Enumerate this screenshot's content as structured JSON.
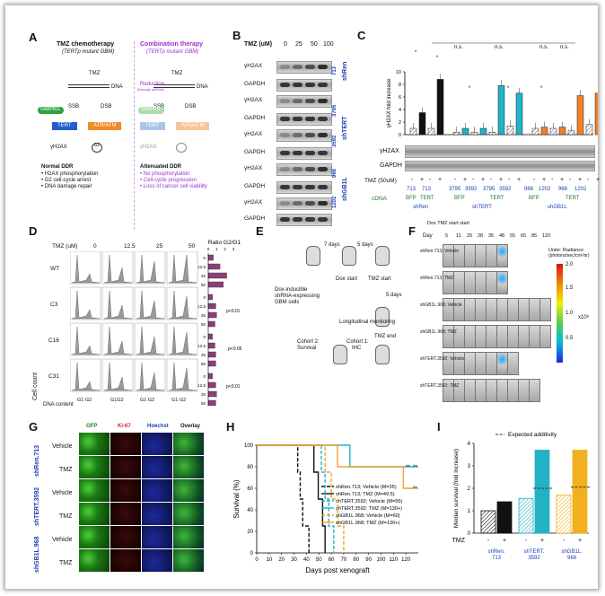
{
  "panels": {
    "A": {
      "label": "A",
      "left_title": "TMZ chemotherapy",
      "left_sub": "(TERTp mutant GBM)",
      "right_title": "Combination therapy",
      "right_sub": "(TERTp mutant GBM)",
      "tmz": "TMZ",
      "dna": "DNA",
      "ssb": "SSB",
      "dsb": "DSB",
      "gabpb1l": "GABPB1L",
      "tert": "TERT",
      "atr_atm": "ATR/ATM",
      "gh2ax": "γH2AX",
      "g2": "G2",
      "reduction": "Reduction",
      "reduction_sub": "(through shRNA)",
      "left_outcome_title": "Normal DDR",
      "left_outcomes": [
        "• H2AX phosphorylation",
        "• G2 cell-cycle arrest",
        "• DNA damage repair"
      ],
      "right_outcome_title": "Attenuated DDR",
      "right_outcomes": [
        "• No phosphorylation",
        "• Cell-cycle progression",
        "• Loss of cancer cell viability"
      ]
    },
    "B": {
      "label": "B",
      "header": "TMZ (uM)",
      "doses": [
        "0",
        "25",
        "50",
        "100"
      ],
      "rows": [
        "γH2AX",
        "GAPDH",
        "γH2AX",
        "GAPDH",
        "γH2AX",
        "GAPDH",
        "γH2AX",
        "GAPDH",
        "γH2AX",
        "GAPDH"
      ],
      "clones": [
        "713",
        "3795",
        "3592",
        "968",
        "1202"
      ],
      "groups": [
        "shRen",
        "shTERT",
        "shGB1L"
      ]
    },
    "C": {
      "label": "C",
      "y_label": "γH2AX fold increase",
      "y_ticks": [
        "0",
        "2",
        "4",
        "6",
        "8",
        "10"
      ],
      "sig": [
        "*",
        "*",
        "*",
        "*",
        "*",
        "n.s.",
        "n.s.",
        "n.s.",
        "n.s."
      ],
      "blot_rows": [
        "γH2AX",
        "GAPDH"
      ],
      "tmz_label": "TMZ (50uM)",
      "tmz_signs": [
        "-",
        "+",
        "-",
        "+",
        "-",
        "+",
        "-",
        "+",
        "-",
        "+",
        "-",
        "+",
        "-",
        "+",
        "-",
        "+",
        "-",
        "+",
        "-",
        "+"
      ],
      "clone_numbers": [
        "713",
        "713",
        "3795",
        "3592",
        "3795",
        "3592",
        "968",
        "1202",
        "968",
        "1202"
      ],
      "cdna_label": "cDNA",
      "cdna": [
        "BFP",
        "TERT",
        "BFP",
        "TERT",
        "BFP",
        "TERT"
      ],
      "groups": [
        "shRen",
        "shTERT",
        "shGB1L"
      ],
      "chart_data": {
        "type": "bar",
        "ylabel": "γH2AX fold increase",
        "ylim": [
          0,
          10
        ],
        "categories": [
          "shRen BFP -",
          "shRen BFP +",
          "shRen TERT -",
          "shRen TERT +",
          "shTERT 3795 BFP -",
          "shTERT 3795 BFP +",
          "shTERT 3592 BFP -",
          "shTERT 3592 BFP +",
          "shTERT 3795 TERT -",
          "shTERT 3795 TERT +",
          "shTERT 3592 TERT -",
          "shTERT 3592 TERT +",
          "shGB1L 968 BFP -",
          "shGB1L 968 BFP +",
          "shGB1L 1202 BFP -",
          "shGB1L 1202 BFP +",
          "shGB1L 968 TERT -",
          "shGB1L 968 TERT +",
          "shGB1L 1202 TERT -",
          "shGB1L 1202 TERT +"
        ],
        "values": [
          1.0,
          3.5,
          1.0,
          8.8,
          0.4,
          1.0,
          0.4,
          1.0,
          0.4,
          7.8,
          1.4,
          6.6,
          1.0,
          1.2,
          1.0,
          1.2,
          0.6,
          6.2,
          1.6,
          6.6
        ],
        "colors": [
          "#ffffff",
          "#111111",
          "#ffffff",
          "#111111",
          "#ffffff",
          "#23b2c6",
          "#ffffff",
          "#23b2c6",
          "#ffffff",
          "#23b2c6",
          "#ffffff",
          "#23b2c6",
          "#ffffff",
          "#f07f2a",
          "#ffffff",
          "#f07f2a",
          "#ffffff",
          "#f07f2a",
          "#ffffff",
          "#f07f2a"
        ]
      }
    },
    "D": {
      "label": "D",
      "tmz_header": "TMZ (uM)",
      "doses": [
        "0",
        "12.5",
        "25",
        "50"
      ],
      "rows": [
        "WT",
        "C3",
        "C16",
        "C31"
      ],
      "y_label": "Cell count",
      "x_label": "DNA content",
      "g_labels": [
        "G1 G2",
        "G1G2",
        "G1 G2",
        "G1 G2"
      ],
      "ratio_title": "Ratio G2/G1",
      "ratio_ticks": [
        "0",
        "1",
        "2",
        "3"
      ],
      "ratio_dose_labels": [
        "0",
        "12.5",
        "25",
        "50"
      ],
      "pvalues": [
        "p<0.01",
        "p<0.05",
        "p<0.01"
      ],
      "chart_data": {
        "type": "bar",
        "title": "Ratio G2/G1",
        "orientation": "horizontal",
        "xlim": [
          0,
          3
        ],
        "categories": [
          "WT 0",
          "WT 12.5",
          "WT 25",
          "WT 50",
          "C3 0",
          "C3 12.5",
          "C3 25",
          "C3 50",
          "C16 0",
          "C16 12.5",
          "C16 25",
          "C16 50",
          "C31 0",
          "C31 12.5",
          "C31 25",
          "C31 50"
        ],
        "values": [
          0.6,
          1.4,
          2.2,
          1.8,
          0.5,
          0.9,
          1.0,
          0.8,
          0.5,
          0.8,
          0.9,
          0.9,
          0.5,
          0.9,
          1.0,
          0.9
        ]
      }
    },
    "E": {
      "label": "E",
      "steps": [
        "7 days",
        "5 days",
        "Dox start",
        "TMZ start",
        "5 days",
        "Longitudinal monitoring",
        "TMZ end"
      ],
      "cells_label": [
        "Dox-inducible",
        "shRNA-expressing",
        "GBM cells"
      ],
      "cohort1": [
        "Cohort 1:",
        "IHC"
      ],
      "cohort2": [
        "Cohort 2:",
        "Survival"
      ]
    },
    "F": {
      "label": "F",
      "day_label": "Day",
      "days": [
        "5",
        "11",
        "20",
        "28",
        "35",
        "48",
        "55",
        "65",
        "85",
        "120"
      ],
      "dox_label": "Dox TMZ start start",
      "rows": [
        "shRen.713; Vehicle",
        "shRen.713; TMZ",
        "shGB1L.968; Vehicle",
        "shGB1L.968; TMZ",
        "shTERT.3592; Vehicle",
        "shTERT.3592; TMZ"
      ],
      "scale_title": [
        "Unite: Radiance",
        "(photons/sec/cm²/sr)"
      ],
      "scale_max": "2.0",
      "scale_vals": [
        "1.5",
        "1.0",
        "0.5"
      ],
      "scale_mult": "x10⁸"
    },
    "G": {
      "label": "G",
      "columns": [
        "GFP",
        "Ki-67",
        "Hoechst",
        "Overlay"
      ],
      "groups": [
        "shRen.713",
        "shTERT.3592",
        "shGB1L.968"
      ],
      "rows": [
        "Vehicle",
        "TMZ",
        "Vehicle",
        "TMZ",
        "Vehicle",
        "TMZ"
      ]
    },
    "H": {
      "label": "H",
      "y_label": "Survival (%)",
      "x_label": "Days post xenograft",
      "stars": [
        "**",
        "**",
        "**"
      ],
      "chart_data": {
        "type": "line",
        "xlabel": "Days post xenograft",
        "ylabel": "Survival (%)",
        "xlim": [
          0,
          130
        ],
        "ylim": [
          0,
          100
        ],
        "x_ticks": [
          0,
          10,
          20,
          30,
          40,
          50,
          60,
          70,
          80,
          90,
          100,
          110,
          120
        ],
        "y_ticks": [
          0,
          20,
          40,
          60,
          80,
          100
        ],
        "series": [
          {
            "name": "shRen.713; Vehicle (M=35)",
            "color": "#111111",
            "dash": "4,2",
            "x": [
              0,
              30,
              33,
              35,
              37,
              42
            ],
            "y": [
              100,
              100,
              75,
              50,
              25,
              0
            ]
          },
          {
            "name": "shRen.713; TMZ (M=49.5)",
            "color": "#111111",
            "dash": "",
            "x": [
              0,
              41,
              46,
              49.5,
              53,
              55
            ],
            "y": [
              100,
              100,
              75,
              50,
              25,
              0
            ]
          },
          {
            "name": "shTERT.3592; Vehicle (M=55)",
            "color": "#23b2c6",
            "dash": "4,2",
            "x": [
              0,
              47,
              52,
              55,
              58,
              62
            ],
            "y": [
              100,
              100,
              75,
              50,
              25,
              0
            ]
          },
          {
            "name": "shTERT.3592; TMZ (M=130+)",
            "color": "#23b2c6",
            "dash": "",
            "x": [
              0,
              70,
              75,
              130
            ],
            "y": [
              100,
              100,
              80,
              80
            ]
          },
          {
            "name": "shGB1L.968; Vehicle (M=60)",
            "color": "#f0a030",
            "dash": "4,2",
            "x": [
              0,
              50,
              55,
              60,
              65,
              70
            ],
            "y": [
              100,
              100,
              75,
              50,
              25,
              0
            ]
          },
          {
            "name": "shGB1L.968; TMZ (M=130+)",
            "color": "#f0a030",
            "dash": "",
            "x": [
              0,
              60,
              65,
              118,
              130
            ],
            "y": [
              100,
              100,
              80,
              60,
              60
            ]
          }
        ]
      }
    },
    "I": {
      "label": "I",
      "legend": "Expected additivity",
      "y_label": "Median survival (fold increase)",
      "y_ticks": [
        "0",
        "1",
        "2",
        "3",
        "4"
      ],
      "tmz_label": "TMZ",
      "tmz_signs": [
        "-",
        "+",
        "-",
        "+",
        "-",
        "+"
      ],
      "groups": [
        "shRen. 713",
        "shTERT. 3592",
        "shGB1L. 968"
      ],
      "chart_data": {
        "type": "bar",
        "ylabel": "Median survival (fold increase)",
        "ylim": [
          0,
          4
        ],
        "categories": [
          "shRen.713 -",
          "shRen.713 +",
          "shTERT.3592 -",
          "shTERT.3592 +",
          "shGB1L.968 -",
          "shGB1L.968 +"
        ],
        "values": [
          1.0,
          1.4,
          1.55,
          3.7,
          1.7,
          3.7
        ],
        "expected_additivity": [
          null,
          null,
          null,
          2.0,
          null,
          2.05
        ],
        "colors": [
          "#111111",
          "#111111",
          "#23b2c6",
          "#23b2c6",
          "#f0b020",
          "#f0b020"
        ]
      }
    }
  }
}
